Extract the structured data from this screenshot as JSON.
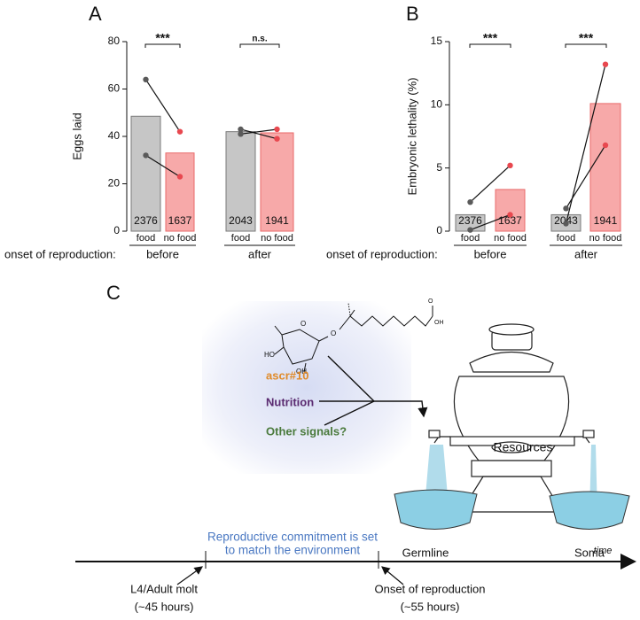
{
  "chart_data": [
    {
      "type": "bar",
      "panel": "A",
      "ylabel": "Eggs laid",
      "categories": [
        "food",
        "no food",
        "food",
        "no food"
      ],
      "values": [
        48.5,
        33,
        42,
        41.5
      ],
      "sample_sizes": [
        2376,
        1637,
        2043,
        1941
      ],
      "replicates": [
        [
          64,
          42,
          43,
          39
        ],
        [
          32,
          23,
          41,
          43
        ]
      ],
      "groups": [
        "before",
        "after"
      ],
      "group_label": "onset of reproduction:",
      "significance": [
        "***",
        "n.s."
      ],
      "colors": [
        "#c6c6c6",
        "#f7a9a9",
        "#c6c6c6",
        "#f7a9a9"
      ],
      "edge_colors": [
        "#7a7a7a",
        "#e86a6a",
        "#7a7a7a",
        "#e86a6a"
      ],
      "point_colors": [
        "#5a5a5a",
        "#e8484f",
        "#5a5a5a",
        "#e8484f"
      ],
      "ylim": [
        0,
        80
      ],
      "yticks": [
        0,
        20,
        40,
        60,
        80
      ]
    },
    {
      "type": "bar",
      "panel": "B",
      "ylabel": "Embryonic lethality (%)",
      "categories": [
        "food",
        "no food",
        "food",
        "no food"
      ],
      "values": [
        1.3,
        3.3,
        1.3,
        10.1
      ],
      "sample_sizes": [
        2376,
        1637,
        2043,
        1941
      ],
      "replicates": [
        [
          2.3,
          5.2,
          0.6,
          13.2
        ],
        [
          0.1,
          1.3,
          1.8,
          6.8
        ]
      ],
      "groups": [
        "before",
        "after"
      ],
      "group_label": "onset of reproduction:",
      "significance": [
        "***",
        "***"
      ],
      "colors": [
        "#c6c6c6",
        "#f7a9a9",
        "#c6c6c6",
        "#f7a9a9"
      ],
      "edge_colors": [
        "#7a7a7a",
        "#e86a6a",
        "#7a7a7a",
        "#e86a6a"
      ],
      "point_colors": [
        "#5a5a5a",
        "#e8484f",
        "#5a5a5a",
        "#e8484f"
      ],
      "ylim": [
        0,
        15
      ],
      "yticks": [
        0,
        5,
        10,
        15
      ]
    }
  ],
  "panel_c": {
    "label": "C",
    "chem": {
      "ring_o": "O",
      "ho": "HO",
      "oh": "OH",
      "link_o": "O",
      "acid_o": "O",
      "acid_oh": "OH"
    },
    "signals": [
      "ascr#10",
      "Nutrition",
      "Other signals?"
    ],
    "resources": "Resources",
    "germline": "Germline",
    "soma": "Soma",
    "commitment": [
      "Reproductive commitment is set",
      "to match the environment"
    ],
    "time": "time",
    "molt": [
      "L4/Adult molt",
      "(~45 hours)"
    ],
    "onset": [
      "Onset of reproduction",
      "(~55 hours)"
    ]
  }
}
